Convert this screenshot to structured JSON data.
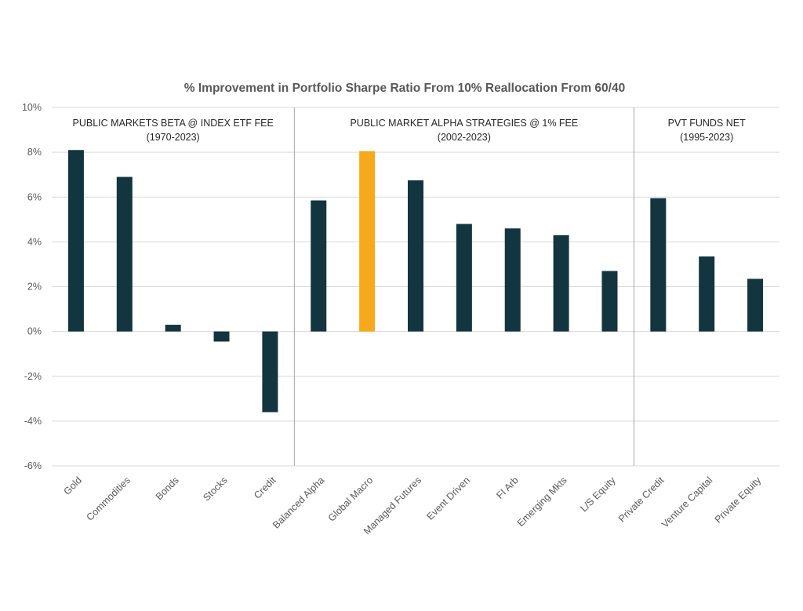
{
  "chart_data": {
    "type": "bar",
    "title": "% Improvement in Portfolio Sharpe Ratio From 10% Reallocation From 60/40",
    "xlabel": "",
    "ylabel": "",
    "ylim": [
      -6,
      10
    ],
    "yticks": [
      10,
      8,
      6,
      4,
      2,
      0,
      -2,
      -4,
      -6
    ],
    "ytick_labels": [
      "10%",
      "8%",
      "6%",
      "4%",
      "2%",
      "0%",
      "-2%",
      "-4%",
      "-6%"
    ],
    "grid": true,
    "legend": "none",
    "categories": [
      "Gold",
      "Commodities",
      "Bonds",
      "Stocks",
      "Credit",
      "Balanced Alpha",
      "Global Macro",
      "Managed Futures",
      "Event Driven",
      "FI Arb",
      "Emerging Mkts",
      "L/S Equity",
      "Private Credit",
      "Venture Capital",
      "Private Equity"
    ],
    "values": [
      8.1,
      6.9,
      0.3,
      -0.45,
      -3.6,
      5.85,
      8.05,
      6.75,
      4.8,
      4.6,
      4.3,
      2.7,
      5.95,
      3.35,
      2.35
    ],
    "highlight_index": 6,
    "colors": {
      "bar": "#12353f",
      "highlight": "#f5a91b",
      "grid": "#d9d9d9",
      "separator": "#a6a6a6"
    },
    "segments": [
      {
        "line1": "PUBLIC MARKETS BETA @ INDEX ETF FEE",
        "line2": "(1970-2023)",
        "first": 0,
        "last": 4
      },
      {
        "line1": "PUBLIC MARKET ALPHA STRATEGIES @ 1% FEE",
        "line2": "(2002-2023)",
        "first": 5,
        "last": 11
      },
      {
        "line1": "PVT FUNDS NET",
        "line2": "(1995-2023)",
        "first": 12,
        "last": 14
      }
    ]
  }
}
